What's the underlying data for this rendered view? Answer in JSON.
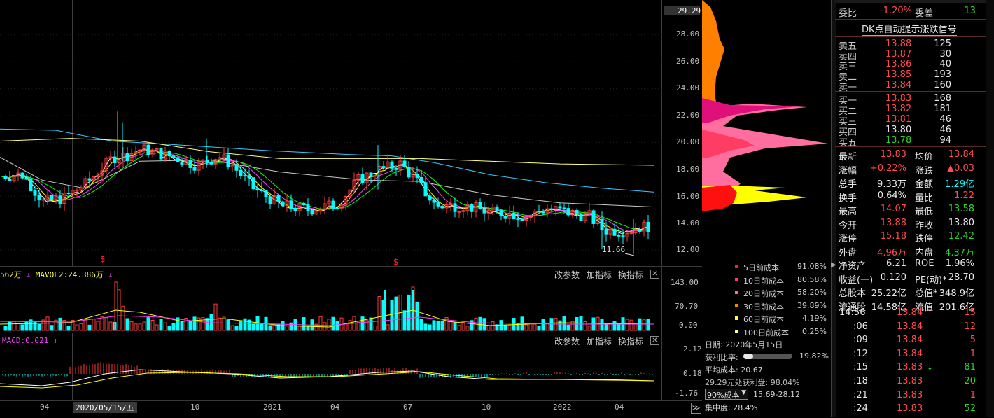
{
  "price_axis": [
    "29.29",
    "28.00",
    "26.00",
    "24.00",
    "22.00",
    "20.00",
    "18.00",
    "16.00",
    "14.00",
    "12.00"
  ],
  "low_marker": "11.66",
  "s_marker": "$",
  "volume_panel": {
    "label_left": "562万",
    "mavol2": "MAVOL2:24.386万",
    "axis": [
      "143.00",
      "70.70",
      "0.00"
    ],
    "buttons": [
      "改参数",
      "加指标",
      "换指标"
    ]
  },
  "macd_panel": {
    "label": "MACD:0.021",
    "axis": [
      "2.12",
      "0.18",
      "-1.76"
    ],
    "buttons": [
      "改参数",
      "加指标",
      "换指标"
    ]
  },
  "close_glyph": "✕",
  "time_axis": {
    "labels": [
      "04",
      "2020/05/15/五",
      "10",
      "2021",
      "04",
      "07",
      "10",
      "2022",
      "04"
    ],
    "nav_glyph": "≫"
  },
  "cost_legend": [
    {
      "label": "5日前成本",
      "value": "91.08%",
      "color": "#ff2020"
    },
    {
      "label": "10日前成本",
      "value": "80.58%",
      "color": "#ff3c64"
    },
    {
      "label": "20日前成本",
      "value": "58.20%",
      "color": "#ff6e9e"
    },
    {
      "label": "30日前成本",
      "value": "39.89%",
      "color": "#ff8000"
    },
    {
      "label": "60日前成本",
      "value": "4.19%",
      "color": "#ffff40"
    },
    {
      "label": "100日前成本",
      "value": "0.25%",
      "color": "#ffff80"
    }
  ],
  "chip_info": {
    "date": "日期: 2020年5月15日",
    "profit_label": "获利比率:",
    "profit_value": "19.82%",
    "profit_fraction": 0.198,
    "avg_cost": "平均成本: 20.67",
    "profit_at": "29.29元处获利盘: 98.04%",
    "cost_select": "90%成本",
    "cost_range": "15.69-28.12",
    "concentration": "集中度: 28.4%"
  },
  "quote": {
    "weibi_label": "委比",
    "weibi": "-1.20%",
    "weicha_label": "委差",
    "weicha": "-13",
    "signal_link": "DK点自动提示涨跌信号",
    "sell": [
      {
        "label": "卖五",
        "price": "13.88",
        "vol": "125"
      },
      {
        "label": "卖四",
        "price": "13.87",
        "vol": "30"
      },
      {
        "label": "卖三",
        "price": "13.86",
        "vol": "40"
      },
      {
        "label": "卖二",
        "price": "13.85",
        "vol": "193"
      },
      {
        "label": "卖一",
        "price": "13.84",
        "vol": "160"
      }
    ],
    "buy": [
      {
        "label": "买一",
        "price": "13.83",
        "vol": "168"
      },
      {
        "label": "买二",
        "price": "13.82",
        "vol": "181"
      },
      {
        "label": "买三",
        "price": "13.81",
        "vol": "46"
      },
      {
        "label": "买四",
        "price": "13.80",
        "vol": "46"
      },
      {
        "label": "买五",
        "price": "13.78",
        "vol": "94"
      }
    ],
    "stats": [
      {
        "l1": "最新",
        "v1": "13.83",
        "c1": "red",
        "l2": "均价",
        "v2": "13.84",
        "c2": "red"
      },
      {
        "l1": "涨幅",
        "v1": "+0.22%",
        "c1": "red",
        "l2": "涨跌",
        "v2": "▲0.03",
        "c2": "red"
      },
      {
        "l1": "总手",
        "v1": "9.33万",
        "c1": "white",
        "l2": "金额",
        "v2": "1.29亿",
        "c2": "cyan"
      },
      {
        "l1": "换手",
        "v1": "0.64%",
        "c1": "white",
        "l2": "量比",
        "v2": "1.22",
        "c2": "red"
      },
      {
        "l1": "最高",
        "v1": "14.07",
        "c1": "red",
        "l2": "最低",
        "v2": "13.58",
        "c2": "green"
      },
      {
        "l1": "今开",
        "v1": "13.88",
        "c1": "red",
        "l2": "昨收",
        "v2": "13.80",
        "c2": "white"
      },
      {
        "l1": "涨停",
        "v1": "15.18",
        "c1": "red",
        "l2": "跌停",
        "v2": "12.42",
        "c2": "green"
      },
      {
        "l1": "外盘",
        "v1": "4.96万",
        "c1": "red",
        "l2": "内盘",
        "v2": "4.37万",
        "c2": "green"
      },
      {
        "l1": "净资产",
        "v1": "6.21",
        "c1": "white",
        "l2": "ROE",
        "v2": "1.96%",
        "c2": "white"
      },
      {
        "l1": "收益(一)",
        "v1": "0.120",
        "c1": "white",
        "l2": "PE(动)*",
        "v2": "28.70",
        "c2": "white"
      },
      {
        "l1": "总股本",
        "v1": "25.22亿",
        "c1": "white",
        "l2": "总值*",
        "v2": "348.9亿",
        "c2": "white"
      },
      {
        "l1": "流通股",
        "v1": "14.58亿",
        "c1": "white",
        "l2": "流值",
        "v2": "201.6亿",
        "c2": "white"
      }
    ],
    "ticks": [
      {
        "time": "14:56",
        "price": "13.84",
        "arrow": "↑",
        "vol": "15",
        "vcolor": "red"
      },
      {
        "time": ":06",
        "price": "13.84",
        "arrow": "",
        "vol": "12",
        "vcolor": "red"
      },
      {
        "time": ":09",
        "price": "13.84",
        "arrow": "",
        "vol": "5",
        "vcolor": "red"
      },
      {
        "time": ":12",
        "price": "13.84",
        "arrow": "",
        "vol": "1",
        "vcolor": "red"
      },
      {
        "time": ":15",
        "price": "13.83",
        "arrow": "↓",
        "vol": "81",
        "vcolor": "green"
      },
      {
        "time": ":18",
        "price": "13.83",
        "arrow": "",
        "vol": "20",
        "vcolor": "green"
      },
      {
        "time": ":21",
        "price": "13.83",
        "arrow": "",
        "vol": "1",
        "vcolor": "red"
      },
      {
        "time": ":24",
        "price": "13.83",
        "arrow": "",
        "vol": "52",
        "vcolor": "green"
      }
    ]
  },
  "colors": {
    "up": "#ff3c3c",
    "down": "#00ffff",
    "ma5": "#ffffff",
    "ma10": "#ffff00",
    "ma20": "#ff40ff",
    "ma30": "#00ff00",
    "ma60": "#c8c8c8",
    "ma120": "#38c8ff",
    "ma250": "#ffff80"
  }
}
